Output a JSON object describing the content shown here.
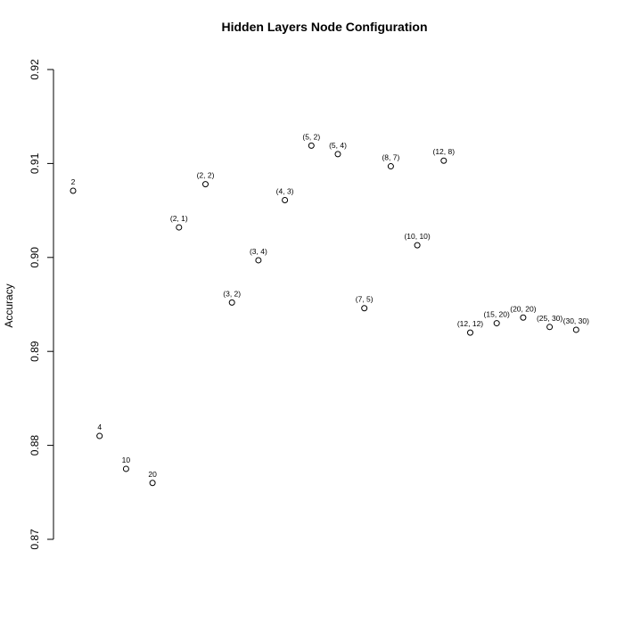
{
  "chart_data": {
    "type": "scatter",
    "title": "Hidden Layers Node Configuration",
    "xlabel": "",
    "ylabel": "Accuracy",
    "ylim": [
      0.87,
      0.92
    ],
    "yticks": [
      "0.87",
      "0.88",
      "0.89",
      "0.90",
      "0.91",
      "0.92"
    ],
    "grid": false,
    "points": [
      {
        "label": "2",
        "y": 0.9071
      },
      {
        "label": "4",
        "y": 0.881
      },
      {
        "label": "10",
        "y": 0.8775
      },
      {
        "label": "20",
        "y": 0.876
      },
      {
        "label": "(2, 1)",
        "y": 0.9032
      },
      {
        "label": "(2, 2)",
        "y": 0.9078
      },
      {
        "label": "(3, 2)",
        "y": 0.8952
      },
      {
        "label": "(3, 4)",
        "y": 0.8997
      },
      {
        "label": "(4, 3)",
        "y": 0.9061
      },
      {
        "label": "(5, 2)",
        "y": 0.9119
      },
      {
        "label": "(5, 4)",
        "y": 0.911
      },
      {
        "label": "(7, 5)",
        "y": 0.8946
      },
      {
        "label": "(8, 7)",
        "y": 0.9097
      },
      {
        "label": "(10, 10)",
        "y": 0.9013
      },
      {
        "label": "(12, 8)",
        "y": 0.9103
      },
      {
        "label": "(12, 12)",
        "y": 0.892
      },
      {
        "label": "(15, 20)",
        "y": 0.893
      },
      {
        "label": "(20, 20)",
        "y": 0.8936
      },
      {
        "label": "(25, 30)",
        "y": 0.8926
      },
      {
        "label": "(30, 30)",
        "y": 0.8923
      }
    ]
  }
}
